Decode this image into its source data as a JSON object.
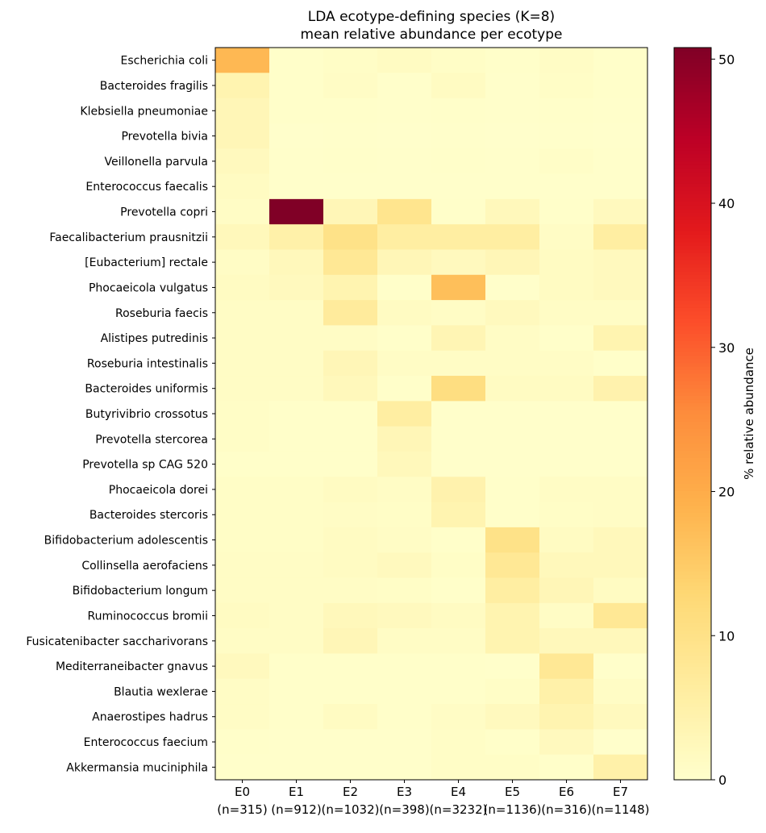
{
  "chart_data": {
    "type": "heatmap",
    "title": "LDA ecotype-defining species (K=8)",
    "subtitle": "mean relative abundance per ecotype",
    "x_categories": [
      "E0",
      "E1",
      "E2",
      "E3",
      "E4",
      "E5",
      "E6",
      "E7"
    ],
    "x_counts": [
      "(n=315)",
      "(n=912)",
      "(n=1032)",
      "(n=398)",
      "(n=3232)",
      "(n=1136)",
      "(n=316)",
      "(n=1148)"
    ],
    "y_categories": [
      "Escherichia coli",
      "Bacteroides fragilis",
      "Klebsiella pneumoniae",
      "Prevotella bivia",
      "Veillonella parvula",
      "Enterococcus faecalis",
      "Prevotella copri",
      "Faecalibacterium prausnitzii",
      "[Eubacterium] rectale",
      "Phocaeicola vulgatus",
      "Roseburia faecis",
      "Alistipes putredinis",
      "Roseburia intestinalis",
      "Bacteroides uniformis",
      "Butyrivibrio crossotus",
      "Prevotella stercorea",
      "Prevotella sp CAG 520",
      "Phocaeicola dorei",
      "Bacteroides stercoris",
      "Bifidobacterium adolescentis",
      "Collinsella aerofaciens",
      "Bifidobacterium longum",
      "Ruminococcus bromii",
      "Fusicatenibacter saccharivorans",
      "Mediterraneibacter gnavus",
      "Blautia wexlerae",
      "Anaerostipes hadrus",
      "Enterococcus faecium",
      "Akkermansia muciniphila"
    ],
    "values": [
      [
        18,
        0.5,
        0.8,
        1.5,
        0.8,
        0.5,
        1,
        0.5
      ],
      [
        4,
        0.5,
        1,
        0.3,
        1.5,
        0.3,
        0.8,
        0.5
      ],
      [
        3,
        0.4,
        0.4,
        0.3,
        0.4,
        0.3,
        0.4,
        0.3
      ],
      [
        3,
        0.2,
        0.3,
        0.2,
        0.3,
        0.2,
        0.3,
        0.2
      ],
      [
        2,
        0.3,
        0.5,
        0.3,
        0.5,
        0.3,
        0.7,
        0.3
      ],
      [
        1.5,
        0.3,
        0.3,
        0.3,
        0.3,
        0.3,
        0.3,
        0.3
      ],
      [
        1,
        50.8,
        3,
        9,
        0.5,
        2.5,
        0.5,
        2
      ],
      [
        2.5,
        5,
        10,
        6,
        6,
        6,
        1,
        6
      ],
      [
        1,
        2.5,
        8,
        3,
        2,
        3,
        1.5,
        2
      ],
      [
        1.5,
        2,
        4,
        0.5,
        17,
        0.3,
        1.5,
        2
      ],
      [
        1,
        1,
        7,
        1.5,
        1,
        2,
        1,
        1
      ],
      [
        1,
        1,
        1,
        0.5,
        3.5,
        1,
        0.5,
        4
      ],
      [
        1,
        1,
        3,
        1,
        1,
        1,
        1,
        0.5
      ],
      [
        1,
        1,
        2.5,
        0.5,
        11,
        1.5,
        1.5,
        4.5
      ],
      [
        0.8,
        0.5,
        0.5,
        6,
        0.3,
        0.3,
        0.3,
        0.3
      ],
      [
        0.8,
        0.5,
        0.5,
        3,
        0.3,
        0.3,
        0.3,
        0.3
      ],
      [
        0.5,
        0.5,
        0.5,
        2.5,
        0.3,
        0.3,
        0.3,
        0.3
      ],
      [
        0.8,
        0.8,
        1.5,
        1,
        4.5,
        0.5,
        1,
        1
      ],
      [
        0.8,
        0.8,
        1,
        0.8,
        4,
        0.5,
        0.8,
        1
      ],
      [
        0.8,
        0.8,
        1.5,
        1,
        0.5,
        10,
        1.5,
        2.5
      ],
      [
        1,
        1,
        1.5,
        2,
        0.8,
        8,
        2.5,
        2.5
      ],
      [
        1,
        1,
        1,
        0.8,
        0.5,
        6,
        3,
        1.5
      ],
      [
        1.5,
        1,
        2.5,
        2,
        1.5,
        4,
        1,
        8
      ],
      [
        1,
        1,
        3,
        1,
        1,
        4,
        2.5,
        2.5
      ],
      [
        2,
        0.5,
        0.5,
        0.5,
        0.5,
        0.3,
        8,
        0.3
      ],
      [
        1,
        0.5,
        0.5,
        0.5,
        0.5,
        0.8,
        5,
        1
      ],
      [
        1,
        0.5,
        1.5,
        0.5,
        1,
        2,
        4,
        2
      ],
      [
        0.5,
        0.3,
        0.3,
        0.3,
        0.8,
        0.5,
        2,
        0.2
      ],
      [
        0.3,
        0.3,
        0.3,
        0.3,
        0.8,
        0.8,
        0.5,
        5
      ]
    ],
    "colormap": "YlOrRd",
    "colorbar_label": "% relative abundance",
    "clim": [
      0,
      50.8
    ],
    "cticks": [
      0,
      10,
      20,
      30,
      40,
      50
    ]
  }
}
